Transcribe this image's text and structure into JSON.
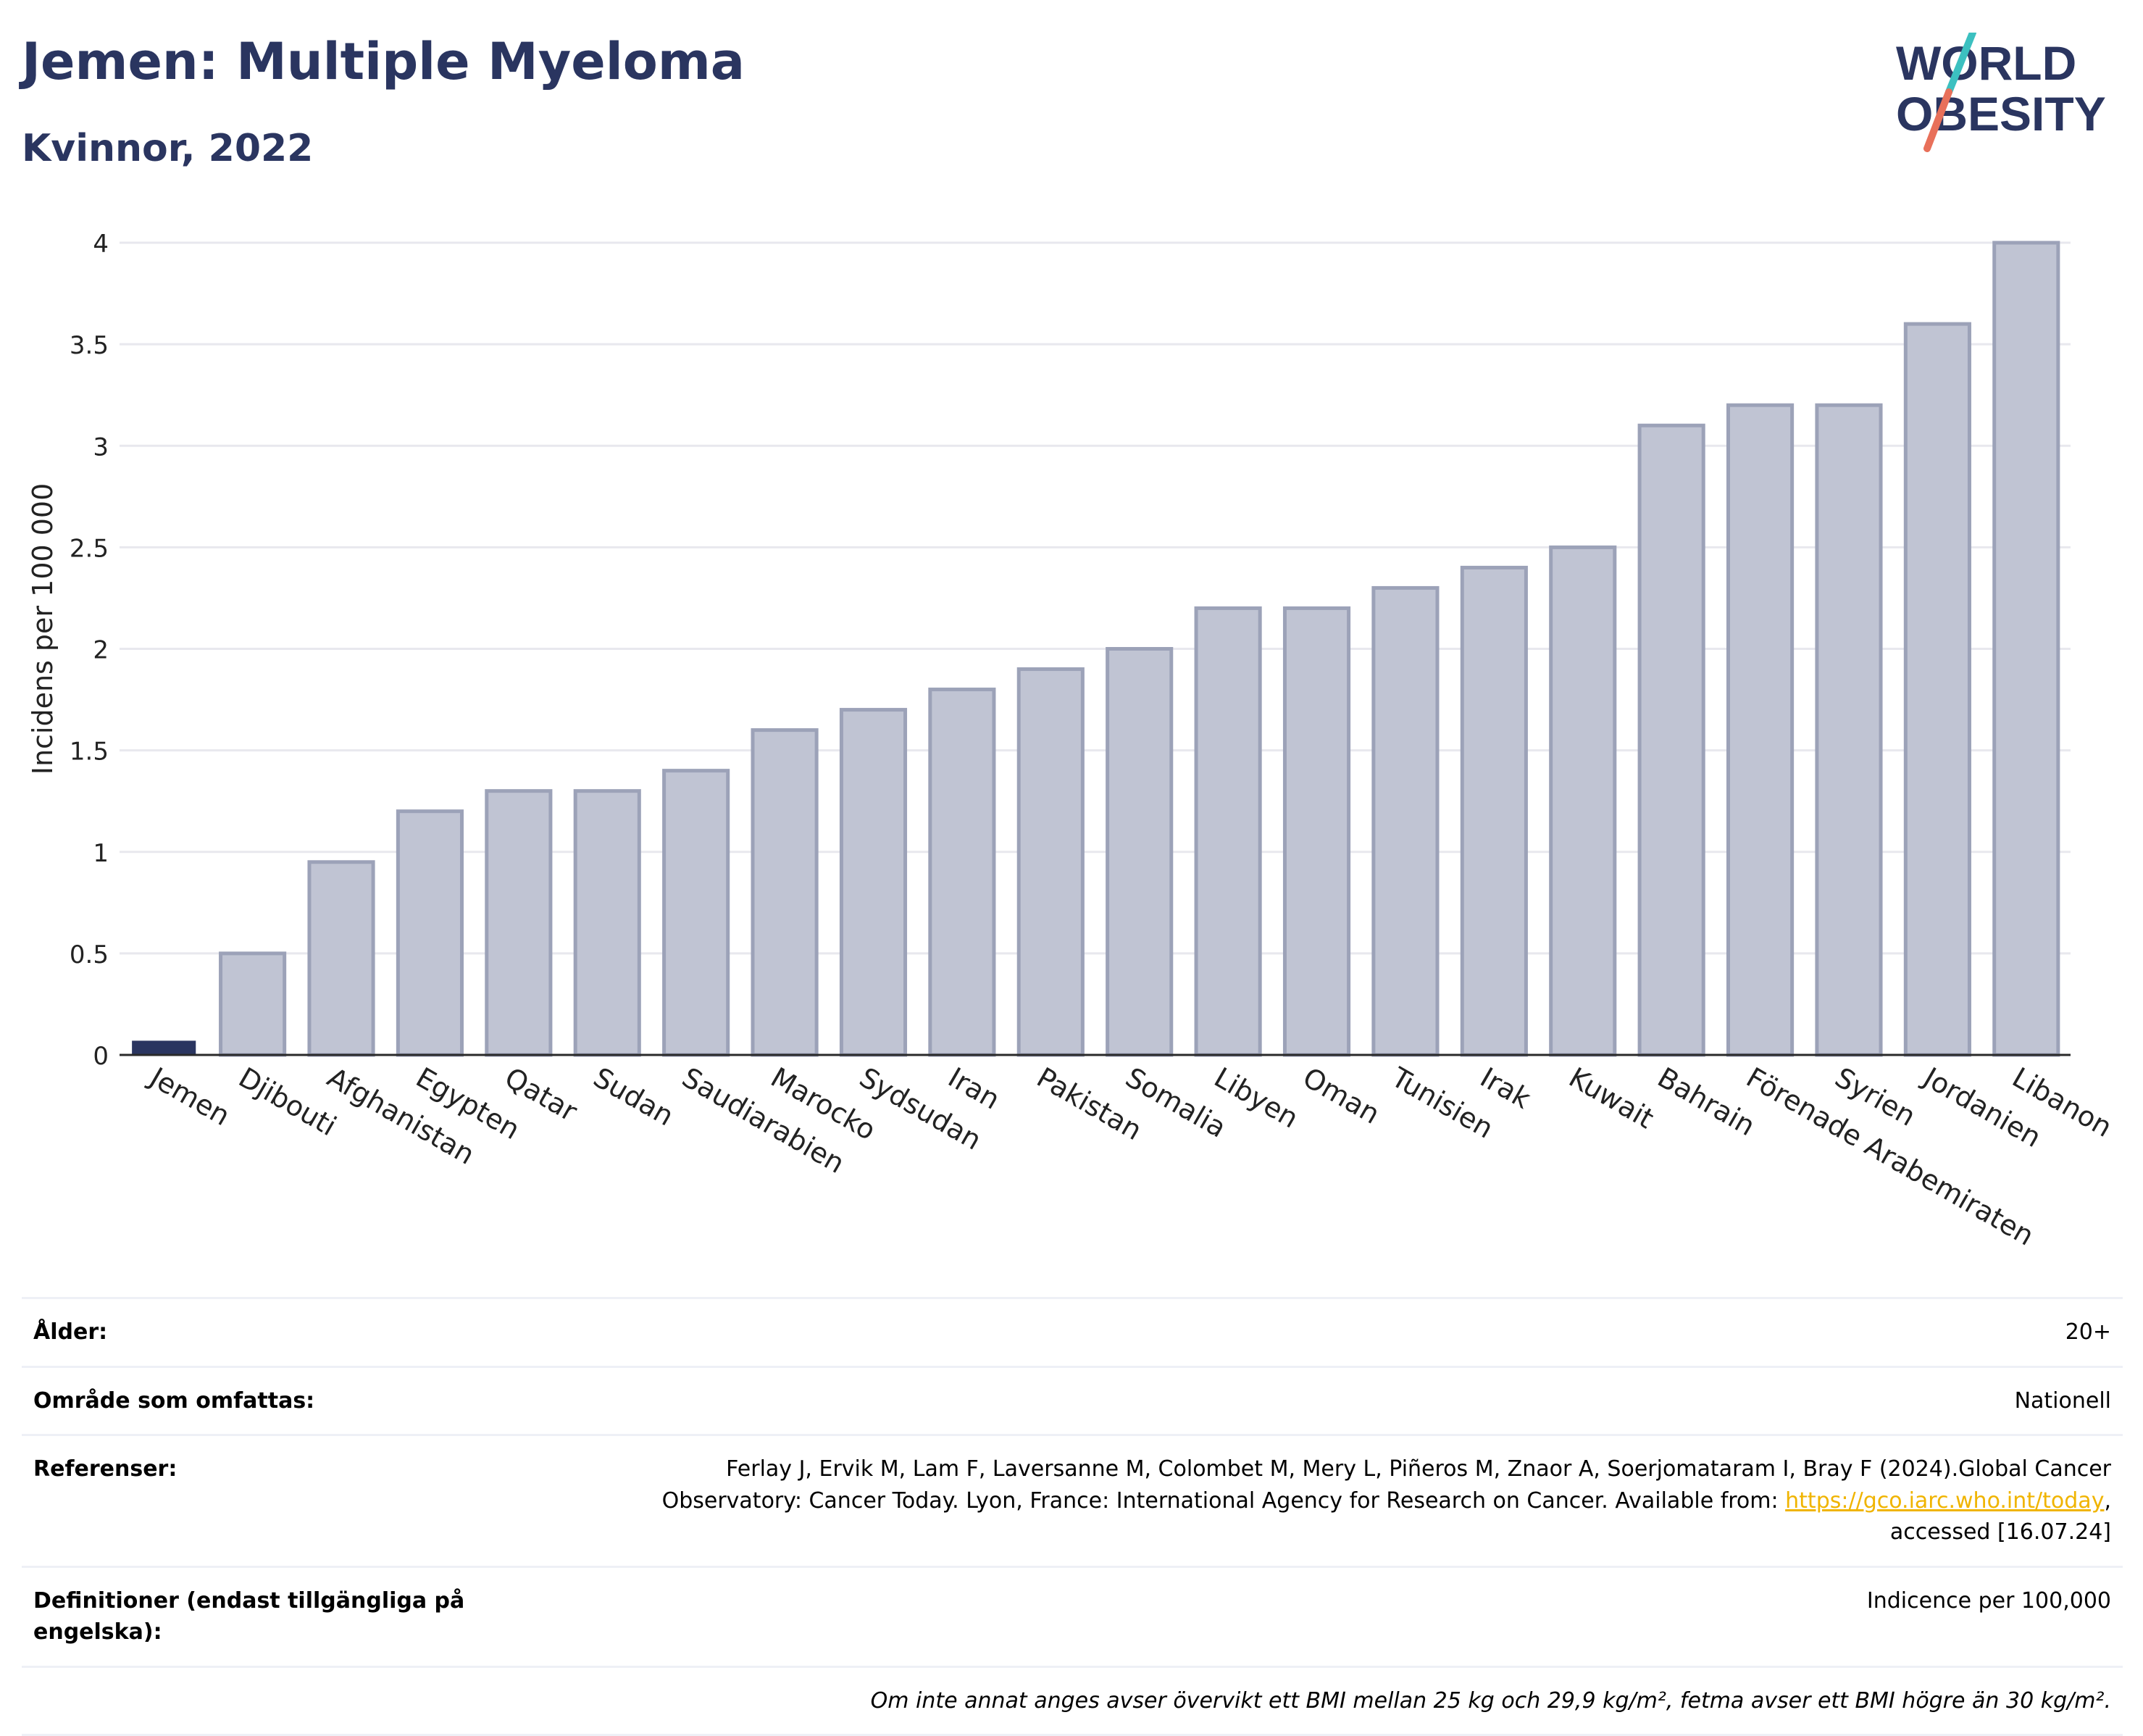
{
  "header": {
    "title": "Jemen: Multiple Myeloma",
    "subtitle": "Kvinnor, 2022",
    "logo_line1": "WORLD",
    "logo_line2": "OBESITY"
  },
  "colors": {
    "navy": "#2a3560",
    "bar_fill": "#c0c4d3",
    "bar_stroke": "#9ca2b8",
    "highlight": "#2a3560",
    "grid": "#e8e8ee",
    "logo_teal": "#3cc0c0",
    "logo_coral": "#e8705a",
    "link": "#f0b400"
  },
  "chart_data": {
    "type": "bar",
    "categories": [
      "Jemen",
      "Djibouti",
      "Afghanistan",
      "Egypten",
      "Qatar",
      "Sudan",
      "Saudiarabien",
      "Marocko",
      "Sydsudan",
      "Iran",
      "Pakistan",
      "Somalia",
      "Libyen",
      "Oman",
      "Tunisien",
      "Irak",
      "Kuwait",
      "Bahrain",
      "Förenade Arabemiraten",
      "Syrien",
      "Jordanien",
      "Libanon"
    ],
    "values": [
      0.07,
      0.5,
      0.95,
      1.2,
      1.3,
      1.3,
      1.4,
      1.6,
      1.7,
      1.8,
      1.9,
      2.0,
      2.2,
      2.2,
      2.3,
      2.4,
      2.5,
      3.1,
      3.2,
      3.2,
      3.6,
      4.0
    ],
    "highlight": "Jemen",
    "ylabel": "Incidens per 100 000",
    "xlabel": "",
    "ylim": [
      0,
      4
    ],
    "yticks": [
      0,
      0.5,
      1,
      1.5,
      2,
      2.5,
      3,
      3.5,
      4
    ],
    "ytick_labels": [
      "0",
      "0.5",
      "1",
      "1.5",
      "2",
      "2.5",
      "3",
      "3.5",
      "4"
    ],
    "grid": true
  },
  "info": {
    "age_label": "Ålder:",
    "age_value": "20+",
    "area_label": "Område som omfattas:",
    "area_value": "Nationell",
    "ref_label": "Referenser:",
    "ref_text_1": "Ferlay J, Ervik M, Lam F, Laversanne M, Colombet M, Mery L, Piñeros M, Znaor A, Soerjomataram I, Bray F (2024).Global Cancer",
    "ref_text_2": "Observatory: Cancer Today. Lyon, France: International Agency for Research on Cancer. Available from: ",
    "ref_link": "https://gco.iarc.who.int/today",
    "ref_text_3": ",",
    "ref_text_4": "accessed [16.07.24]",
    "def_label": "Definitioner (endast tillgängliga på engelska):",
    "def_value": "Indicence per 100,000",
    "note": "Om inte annat anges avser övervikt ett BMI mellan 25 kg och 29,9 kg/m², fetma avser ett BMI högre än 30 kg/m²."
  }
}
